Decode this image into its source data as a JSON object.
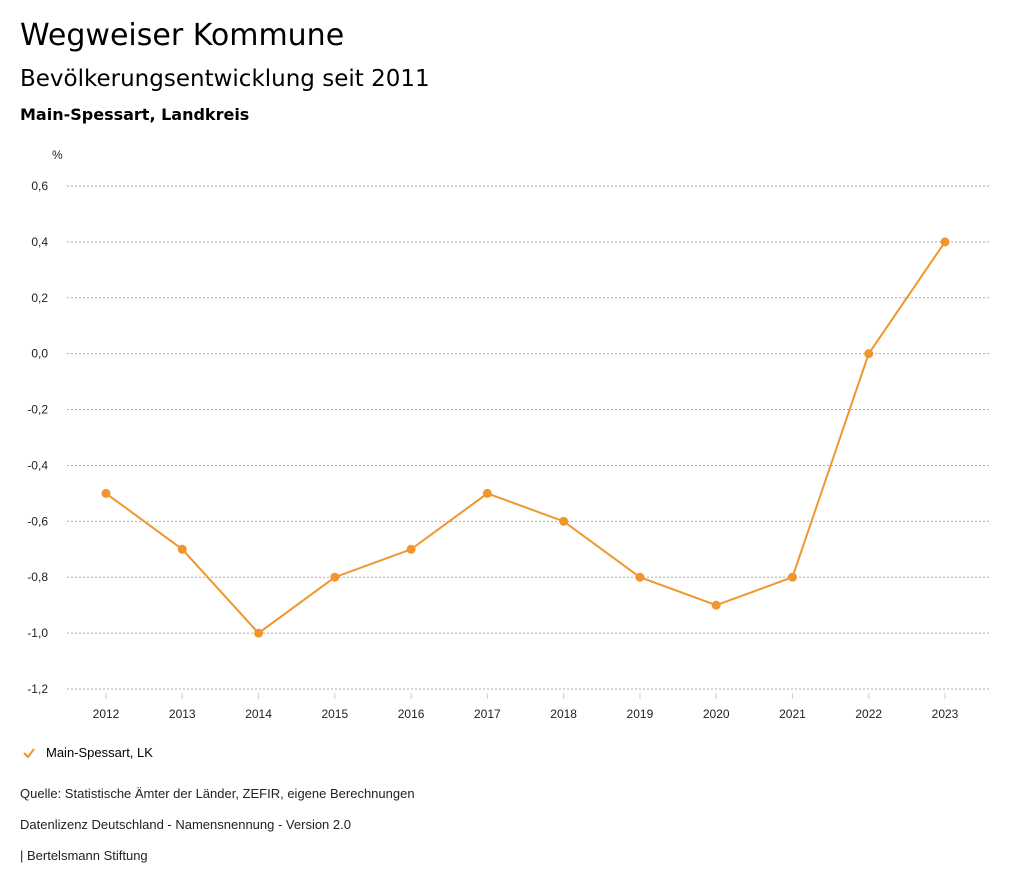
{
  "header": {
    "title": "Wegweiser Kommune",
    "subtitle": "Bevölkerungsentwicklung seit 2011",
    "region": "Main-Spessart, Landkreis"
  },
  "chart_data": {
    "type": "line",
    "ylabel": "%",
    "categories": [
      "2012",
      "2013",
      "2014",
      "2015",
      "2016",
      "2017",
      "2018",
      "2019",
      "2020",
      "2021",
      "2022",
      "2023"
    ],
    "series": [
      {
        "name": "Main-Spessart, LK",
        "color": "#f0962d",
        "values": [
          -0.5,
          -0.7,
          -1.0,
          -0.8,
          -0.7,
          -0.5,
          -0.6,
          -0.8,
          -0.9,
          -0.8,
          0.0,
          0.4
        ]
      }
    ],
    "ylim": [
      -1.2,
      0.6
    ],
    "yticks": [
      0.6,
      0.4,
      0.2,
      0.0,
      -0.2,
      -0.4,
      -0.6,
      -0.8,
      -1.0,
      -1.2
    ],
    "ytick_labels": [
      "0,6",
      "0,4",
      "0,2",
      "0,0",
      "-0,2",
      "-0,4",
      "-0,6",
      "-0,8",
      "-1,0",
      "-1,2"
    ],
    "grid": true,
    "legend": "bottom-left"
  },
  "footer": {
    "source": "Quelle: Statistische Ämter der Länder, ZEFIR, eigene Berechnungen",
    "license": "Datenlizenz Deutschland - Namensnennung - Version 2.0",
    "credit": "| Bertelsmann Stiftung"
  }
}
